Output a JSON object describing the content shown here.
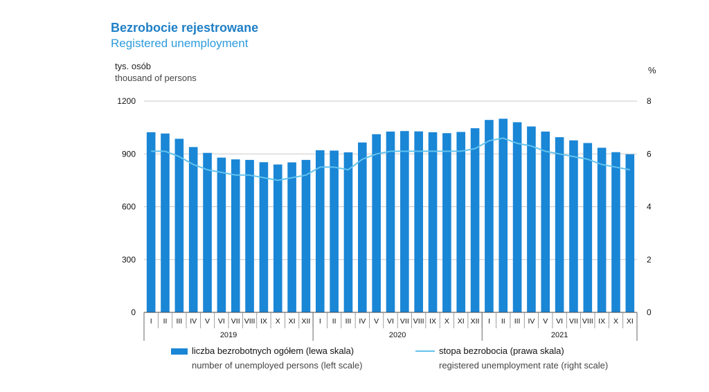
{
  "titles": {
    "pl": "Bezrobocie rejestrowane",
    "en": "Registered unemployment"
  },
  "units": {
    "left_pl": "tys. osób",
    "left_en": "thousand of persons",
    "right": "%"
  },
  "legend": {
    "bar_pl": "liczba bezrobotnych ogółem (lewa skala)",
    "bar_en": "number of unemployed persons (left scale)",
    "line_pl": "stopa bezrobocia (prawa skala)",
    "line_en": "registered unemployment rate (right scale)"
  },
  "colors": {
    "bar": "#1a86d6",
    "line": "#63c3ee",
    "title": "#1f7fc6"
  },
  "chart_data": {
    "type": "bar",
    "categories": [
      "I",
      "II",
      "III",
      "IV",
      "V",
      "VI",
      "VII",
      "VIII",
      "IX",
      "X",
      "XI",
      "XII",
      "I",
      "II",
      "III",
      "IV",
      "V",
      "VI",
      "VII",
      "VIII",
      "IX",
      "X",
      "XI",
      "XII",
      "I",
      "II",
      "III",
      "IV",
      "V",
      "VI",
      "VII",
      "VIII",
      "IX",
      "X",
      "XI"
    ],
    "years": [
      {
        "label": "2019",
        "months": 12
      },
      {
        "label": "2020",
        "months": 12
      },
      {
        "label": "2021",
        "months": 11
      }
    ],
    "series": [
      {
        "name": "liczba bezrobotnych ogółem (lewa skala)",
        "axis": "left",
        "values": [
          1023,
          1016,
          986,
          939,
          906,
          879,
          869,
          866,
          853,
          840,
          852,
          866,
          921,
          919,
          909,
          965,
          1012,
          1027,
          1030,
          1028,
          1023,
          1018,
          1025,
          1046,
          1093,
          1100,
          1080,
          1056,
          1027,
          995,
          977,
          962,
          935,
          910,
          898
        ]
      },
      {
        "name": "stopa bezrobocia (prawa skala)",
        "axis": "right",
        "type": "line",
        "values": [
          6.1,
          6.1,
          5.9,
          5.6,
          5.4,
          5.3,
          5.2,
          5.2,
          5.1,
          5.0,
          5.1,
          5.2,
          5.5,
          5.5,
          5.4,
          5.8,
          6.0,
          6.1,
          6.1,
          6.1,
          6.1,
          6.1,
          6.1,
          6.2,
          6.5,
          6.6,
          6.4,
          6.3,
          6.1,
          6.0,
          5.9,
          5.8,
          5.6,
          5.5,
          5.4
        ]
      }
    ],
    "left_axis": {
      "min": 0,
      "max": 1200,
      "ticks": [
        0,
        300,
        600,
        900,
        1200
      ]
    },
    "right_axis": {
      "min": 0,
      "max": 8,
      "ticks": [
        0,
        2,
        4,
        6,
        8
      ]
    },
    "grid": true
  }
}
